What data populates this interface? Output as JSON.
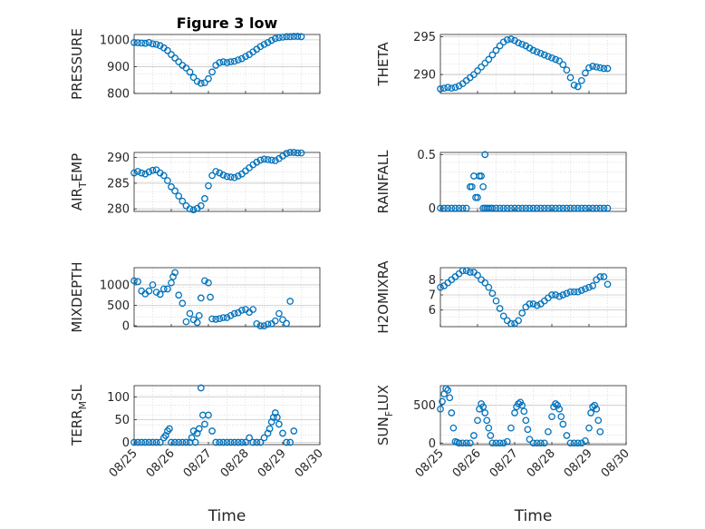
{
  "chart_data": [
    {
      "type": "scatter",
      "title": "Figure 3 low",
      "ylabel": "PRESSURE",
      "xlabel": "",
      "ylim": [
        800,
        1020
      ],
      "yticks": [
        "800",
        "900",
        "1000"
      ],
      "xlim": [
        0,
        5
      ],
      "xticks": [],
      "grid": true,
      "marker_color": "#0072BD",
      "series": [
        {
          "x": [
            0.0,
            0.1,
            0.2,
            0.3,
            0.4,
            0.5,
            0.6,
            0.7,
            0.8,
            0.9,
            1.0,
            1.1,
            1.2,
            1.3,
            1.4,
            1.5,
            1.6,
            1.7,
            1.8,
            1.9,
            2.0,
            2.1,
            2.2,
            2.3,
            2.4,
            2.5,
            2.6,
            2.7,
            2.8,
            2.9,
            3.0,
            3.1,
            3.2,
            3.3,
            3.4,
            3.5,
            3.6,
            3.7,
            3.8,
            3.9,
            4.0,
            4.1,
            4.2,
            4.3,
            4.4,
            4.5
          ],
          "y": [
            990,
            989,
            988,
            987,
            990,
            985,
            983,
            978,
            970,
            960,
            945,
            932,
            918,
            905,
            895,
            880,
            860,
            845,
            838,
            840,
            855,
            880,
            905,
            915,
            918,
            915,
            918,
            920,
            925,
            930,
            938,
            945,
            955,
            965,
            975,
            983,
            990,
            998,
            1005,
            1008,
            1010,
            1012,
            1012,
            1013,
            1013,
            1012
          ]
        }
      ]
    },
    {
      "type": "scatter",
      "title": "",
      "ylabel": "THETA",
      "xlabel": "",
      "ylim": [
        287.5,
        295.3
      ],
      "yticks": [
        "290",
        "295"
      ],
      "xlim": [
        0,
        5
      ],
      "xticks": [],
      "grid": true,
      "marker_color": "#0072BD",
      "series": [
        {
          "x": [
            0.0,
            0.1,
            0.2,
            0.3,
            0.4,
            0.5,
            0.6,
            0.7,
            0.8,
            0.9,
            1.0,
            1.1,
            1.2,
            1.3,
            1.4,
            1.5,
            1.6,
            1.7,
            1.8,
            1.9,
            2.0,
            2.1,
            2.2,
            2.3,
            2.4,
            2.5,
            2.6,
            2.7,
            2.8,
            2.9,
            3.0,
            3.1,
            3.2,
            3.3,
            3.4,
            3.5,
            3.6,
            3.7,
            3.8,
            3.9,
            4.0,
            4.1,
            4.2,
            4.3,
            4.4,
            4.5
          ],
          "y": [
            288.1,
            288.2,
            288.3,
            288.2,
            288.3,
            288.5,
            288.8,
            289.2,
            289.6,
            290.0,
            290.5,
            291.0,
            291.5,
            292.0,
            292.6,
            293.2,
            293.8,
            294.3,
            294.6,
            294.7,
            294.5,
            294.2,
            294.0,
            293.8,
            293.5,
            293.2,
            293.0,
            292.8,
            292.6,
            292.4,
            292.2,
            292.0,
            291.8,
            291.3,
            290.6,
            289.6,
            288.6,
            288.4,
            289.2,
            290.2,
            290.9,
            291.1,
            291.0,
            290.9,
            290.8,
            290.8
          ]
        }
      ]
    },
    {
      "type": "scatter",
      "title": "",
      "ylabel": "AIR_TEMP",
      "ylabel_main": "AIR",
      "ylabel_sub": "T",
      "ylabel_rest": "EMP",
      "xlabel": "",
      "ylim": [
        279.5,
        291
      ],
      "yticks": [
        "280",
        "285",
        "290"
      ],
      "xlim": [
        0,
        5
      ],
      "xticks": [],
      "grid": true,
      "marker_color": "#0072BD",
      "series": [
        {
          "x": [
            0.0,
            0.1,
            0.2,
            0.3,
            0.4,
            0.5,
            0.6,
            0.7,
            0.8,
            0.9,
            1.0,
            1.1,
            1.2,
            1.3,
            1.4,
            1.5,
            1.6,
            1.7,
            1.8,
            1.9,
            2.0,
            2.1,
            2.2,
            2.3,
            2.4,
            2.5,
            2.6,
            2.7,
            2.8,
            2.9,
            3.0,
            3.1,
            3.2,
            3.3,
            3.4,
            3.5,
            3.6,
            3.7,
            3.8,
            3.9,
            4.0,
            4.1,
            4.2,
            4.3,
            4.4,
            4.5
          ],
          "y": [
            287.0,
            287.3,
            287.0,
            286.8,
            287.2,
            287.5,
            287.6,
            287.0,
            286.5,
            285.5,
            284.3,
            283.5,
            282.5,
            281.5,
            280.6,
            280.0,
            279.8,
            280.1,
            280.6,
            282.0,
            284.5,
            286.5,
            287.3,
            287.0,
            286.6,
            286.3,
            286.2,
            286.1,
            286.4,
            286.8,
            287.4,
            288.0,
            288.6,
            289.1,
            289.5,
            289.7,
            289.6,
            289.5,
            289.4,
            289.8,
            290.3,
            290.8,
            291.0,
            291.0,
            290.9,
            290.9
          ]
        }
      ]
    },
    {
      "type": "scatter",
      "title": "",
      "ylabel": "RAINFALL",
      "xlabel": "",
      "ylim": [
        -0.03,
        0.52
      ],
      "yticks": [
        "0",
        "0.5"
      ],
      "xlim": [
        0,
        5
      ],
      "xticks": [],
      "grid": true,
      "marker_color": "#0072BD",
      "series": [
        {
          "x": [
            0.0,
            0.1,
            0.2,
            0.3,
            0.4,
            0.5,
            0.6,
            0.7,
            0.8,
            0.85,
            0.9,
            0.95,
            1.0,
            1.05,
            1.1,
            1.15,
            1.2,
            1.25,
            1.3,
            1.35,
            1.4,
            1.5,
            1.6,
            1.7,
            1.8,
            1.9,
            2.0,
            2.1,
            2.2,
            2.3,
            2.4,
            2.5,
            2.6,
            2.7,
            2.8,
            2.9,
            3.0,
            3.1,
            3.2,
            3.3,
            3.4,
            3.5,
            3.6,
            3.7,
            3.8,
            3.9,
            4.0,
            4.1,
            4.2,
            4.3,
            4.4,
            4.5,
            1.2,
            1.15
          ],
          "y": [
            0,
            0,
            0,
            0,
            0,
            0,
            0,
            0,
            0.2,
            0.2,
            0.3,
            0.1,
            0.1,
            0.3,
            0.3,
            0,
            0,
            0,
            0,
            0,
            0,
            0,
            0,
            0,
            0,
            0,
            0,
            0,
            0,
            0,
            0,
            0,
            0,
            0,
            0,
            0,
            0,
            0,
            0,
            0,
            0,
            0,
            0,
            0,
            0,
            0,
            0,
            0,
            0,
            0,
            0,
            0,
            0.5,
            0.2
          ]
        }
      ]
    },
    {
      "type": "scatter",
      "title": "",
      "ylabel": "MIXDEPTH",
      "xlabel": "",
      "ylim": [
        -20,
        1420
      ],
      "yticks": [
        "0",
        "500",
        "1000"
      ],
      "xlim": [
        0,
        5
      ],
      "xticks": [],
      "grid": true,
      "marker_color": "#0072BD",
      "series": [
        {
          "x": [
            0.0,
            0.1,
            0.2,
            0.3,
            0.4,
            0.5,
            0.6,
            0.7,
            0.8,
            0.9,
            1.0,
            1.05,
            1.1,
            1.2,
            1.3,
            1.4,
            1.5,
            1.6,
            1.7,
            1.75,
            1.8,
            1.9,
            2.0,
            2.05,
            2.1,
            2.2,
            2.3,
            2.4,
            2.5,
            2.6,
            2.7,
            2.8,
            2.9,
            3.0,
            3.1,
            3.2,
            3.3,
            3.4,
            3.5,
            3.6,
            3.7,
            3.8,
            3.9,
            4.0,
            4.1,
            4.2
          ],
          "y": [
            1100,
            1080,
            850,
            780,
            850,
            1000,
            820,
            770,
            900,
            900,
            1050,
            1200,
            1300,
            750,
            550,
            100,
            300,
            150,
            80,
            250,
            680,
            1100,
            1050,
            700,
            170,
            160,
            175,
            200,
            200,
            250,
            300,
            320,
            380,
            400,
            330,
            400,
            50,
            0,
            0,
            40,
            50,
            120,
            300,
            150,
            60,
            600
          ]
        }
      ]
    },
    {
      "type": "scatter",
      "title": "",
      "ylabel": "H2OMIXRA",
      "xlabel": "",
      "ylim": [
        4.9,
        8.8
      ],
      "yticks": [
        "6",
        "7",
        "8"
      ],
      "xlim": [
        0,
        5
      ],
      "xticks": [],
      "grid": true,
      "marker_color": "#0072BD",
      "series": [
        {
          "x": [
            0.0,
            0.1,
            0.2,
            0.3,
            0.4,
            0.5,
            0.6,
            0.7,
            0.8,
            0.9,
            1.0,
            1.1,
            1.2,
            1.3,
            1.4,
            1.5,
            1.6,
            1.7,
            1.8,
            1.9,
            2.0,
            2.1,
            2.2,
            2.3,
            2.4,
            2.5,
            2.6,
            2.7,
            2.8,
            2.9,
            3.0,
            3.1,
            3.2,
            3.3,
            3.4,
            3.5,
            3.6,
            3.7,
            3.8,
            3.9,
            4.0,
            4.1,
            4.2,
            4.3,
            4.4,
            4.5
          ],
          "y": [
            7.5,
            7.6,
            7.8,
            8.0,
            8.2,
            8.4,
            8.6,
            8.6,
            8.5,
            8.5,
            8.3,
            8.0,
            7.8,
            7.5,
            7.1,
            6.6,
            6.1,
            5.6,
            5.3,
            5.1,
            5.1,
            5.3,
            5.8,
            6.2,
            6.4,
            6.4,
            6.3,
            6.4,
            6.6,
            6.8,
            7.0,
            7.0,
            6.9,
            7.0,
            7.1,
            7.2,
            7.2,
            7.2,
            7.3,
            7.4,
            7.5,
            7.6,
            8.0,
            8.2,
            8.2,
            7.7
          ]
        }
      ]
    },
    {
      "type": "scatter",
      "title": "",
      "ylabel": "TERR_MSL",
      "ylabel_main": "TERR",
      "ylabel_sub": "M",
      "ylabel_rest": "SL",
      "xlabel": "Time",
      "ylim": [
        -5,
        125
      ],
      "yticks": [
        "0",
        "50",
        "100"
      ],
      "xlim": [
        0,
        5
      ],
      "xticks": [
        "08/25",
        "08/26",
        "08/27",
        "08/28",
        "08/29",
        "08/30"
      ],
      "grid": true,
      "marker_color": "#0072BD",
      "series": [
        {
          "x": [
            0.0,
            0.1,
            0.2,
            0.3,
            0.4,
            0.5,
            0.6,
            0.7,
            0.8,
            0.85,
            0.9,
            0.95,
            1.0,
            1.1,
            1.2,
            1.3,
            1.4,
            1.5,
            1.55,
            1.6,
            1.65,
            1.7,
            1.75,
            1.8,
            1.85,
            1.9,
            2.0,
            2.1,
            2.2,
            2.3,
            2.4,
            2.5,
            2.6,
            2.7,
            2.8,
            2.9,
            3.0,
            3.1,
            3.2,
            3.3,
            3.4,
            3.5,
            3.6,
            3.65,
            3.7,
            3.75,
            3.8,
            3.85,
            3.9,
            4.0,
            4.1,
            4.2,
            4.3
          ],
          "y": [
            0,
            0,
            0,
            0,
            0,
            0,
            0,
            0,
            10,
            15,
            25,
            30,
            0,
            0,
            0,
            0,
            0,
            0,
            10,
            25,
            0,
            20,
            30,
            120,
            60,
            40,
            60,
            25,
            0,
            0,
            0,
            0,
            0,
            0,
            0,
            0,
            0,
            10,
            0,
            0,
            0,
            10,
            20,
            30,
            45,
            55,
            65,
            55,
            40,
            20,
            0,
            0,
            25
          ]
        }
      ]
    },
    {
      "type": "scatter",
      "title": "",
      "ylabel": "SUN_FLUX",
      "ylabel_main": "SUN",
      "ylabel_sub": "F",
      "ylabel_rest": "LUX",
      "xlabel": "Time",
      "ylim": [
        -20,
        760
      ],
      "yticks": [
        "0",
        "500"
      ],
      "xlim": [
        0,
        5
      ],
      "xticks": [
        "08/25",
        "08/26",
        "08/27",
        "08/28",
        "08/29",
        "08/30"
      ],
      "grid": true,
      "marker_color": "#0072BD",
      "series": [
        {
          "x": [
            0.0,
            0.05,
            0.1,
            0.15,
            0.2,
            0.25,
            0.3,
            0.35,
            0.4,
            0.45,
            0.5,
            0.6,
            0.7,
            0.8,
            0.9,
            1.0,
            1.05,
            1.1,
            1.15,
            1.2,
            1.25,
            1.3,
            1.35,
            1.4,
            1.5,
            1.6,
            1.7,
            1.8,
            1.9,
            2.0,
            2.05,
            2.1,
            2.15,
            2.2,
            2.25,
            2.3,
            2.35,
            2.4,
            2.5,
            2.6,
            2.7,
            2.8,
            2.9,
            3.0,
            3.05,
            3.1,
            3.15,
            3.2,
            3.25,
            3.3,
            3.4,
            3.5,
            3.6,
            3.7,
            3.8,
            3.9,
            4.0,
            4.05,
            4.1,
            4.15,
            4.2,
            4.25,
            4.3
          ],
          "y": [
            450,
            550,
            650,
            720,
            700,
            600,
            400,
            200,
            20,
            10,
            0,
            0,
            0,
            0,
            100,
            300,
            450,
            520,
            480,
            400,
            300,
            200,
            100,
            0,
            0,
            0,
            0,
            20,
            200,
            400,
            480,
            520,
            540,
            500,
            420,
            300,
            180,
            50,
            0,
            0,
            0,
            0,
            150,
            350,
            480,
            520,
            500,
            450,
            350,
            250,
            100,
            0,
            0,
            0,
            0,
            30,
            200,
            400,
            480,
            500,
            450,
            300,
            150
          ]
        }
      ]
    }
  ]
}
